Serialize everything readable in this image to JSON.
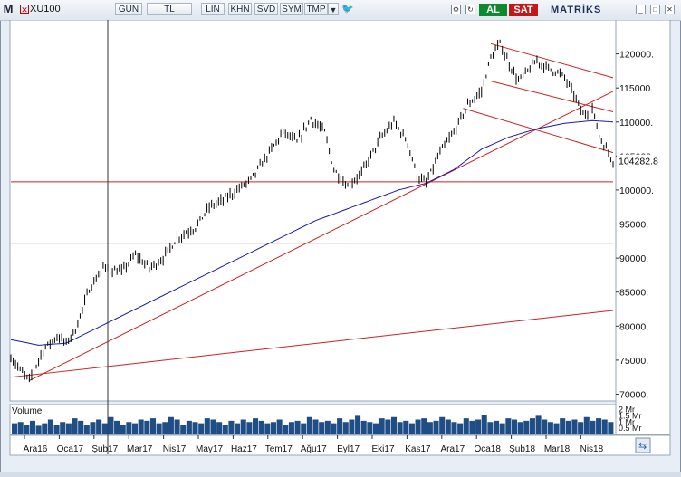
{
  "toolbar": {
    "app_icon": "M",
    "close_icon": "✕",
    "symbol": "XU100",
    "buttons": [
      "GUN",
      "TL",
      "LIN",
      "KHN",
      "SVD",
      "SYM",
      "TMP"
    ],
    "buy_label": "AL",
    "sell_label": "SAT",
    "brand": "MATRİKS"
  },
  "colors": {
    "price": "#000000",
    "moving_average": "#1a1aa8",
    "trendline": "#cc2222",
    "volume": "#1f4e86",
    "buy": "#0d8a2d",
    "sell": "#c21818"
  },
  "chart_data": {
    "type": "line",
    "instrument": "XU100",
    "last_price_label": "104282.8",
    "ylim": [
      69000,
      125000
    ],
    "y_ticks": [
      "120000.",
      "115000.",
      "110000.",
      "105000.",
      "100000.",
      "95000.",
      "90000.",
      "85000.",
      "80000.",
      "75000.",
      "70000."
    ],
    "y_tick_values": [
      120000,
      115000,
      110000,
      105000,
      100000,
      95000,
      90000,
      85000,
      80000,
      75000,
      70000
    ],
    "x_ticks": [
      "Ara16",
      "Oca17",
      "Şub17",
      "Mar17",
      "Nis17",
      "May17",
      "Haz17",
      "Tem17",
      "Ağu17",
      "Eyl17",
      "Eki17",
      "Kas17",
      "Ara17",
      "Oca18",
      "Şub18",
      "Mar18",
      "Nis18"
    ],
    "price_keypoints": [
      [
        0,
        75500
      ],
      [
        4,
        73500
      ],
      [
        8,
        72000
      ],
      [
        14,
        76500
      ],
      [
        20,
        78500
      ],
      [
        24,
        77500
      ],
      [
        28,
        79500
      ],
      [
        34,
        85500
      ],
      [
        40,
        88500
      ],
      [
        48,
        88000
      ],
      [
        54,
        90500
      ],
      [
        60,
        88500
      ],
      [
        66,
        90000
      ],
      [
        72,
        93000
      ],
      [
        80,
        94500
      ],
      [
        86,
        97500
      ],
      [
        92,
        98500
      ],
      [
        98,
        100000
      ],
      [
        104,
        101500
      ],
      [
        110,
        104500
      ],
      [
        118,
        108500
      ],
      [
        124,
        107000
      ],
      [
        130,
        110500
      ],
      [
        136,
        108500
      ],
      [
        140,
        103000
      ],
      [
        146,
        100500
      ],
      [
        152,
        102500
      ],
      [
        160,
        107500
      ],
      [
        166,
        110000
      ],
      [
        172,
        107000
      ],
      [
        176,
        102000
      ],
      [
        180,
        101000
      ],
      [
        186,
        105500
      ],
      [
        192,
        108500
      ],
      [
        198,
        112500
      ],
      [
        204,
        114500
      ],
      [
        208,
        119500
      ],
      [
        212,
        121500
      ],
      [
        216,
        118500
      ],
      [
        220,
        116000
      ],
      [
        224,
        117500
      ],
      [
        228,
        119000
      ],
      [
        232,
        118000
      ],
      [
        236,
        117500
      ],
      [
        240,
        116500
      ],
      [
        244,
        114000
      ],
      [
        248,
        111000
      ],
      [
        252,
        112000
      ],
      [
        255,
        108000
      ],
      [
        258,
        106000
      ],
      [
        261,
        104282.8
      ]
    ],
    "moving_average_keypoints": [
      [
        0,
        78000
      ],
      [
        12,
        77200
      ],
      [
        24,
        77500
      ],
      [
        36,
        79500
      ],
      [
        48,
        81500
      ],
      [
        60,
        83500
      ],
      [
        72,
        85500
      ],
      [
        84,
        87500
      ],
      [
        96,
        89500
      ],
      [
        108,
        91500
      ],
      [
        120,
        93500
      ],
      [
        132,
        95500
      ],
      [
        144,
        97000
      ],
      [
        156,
        98500
      ],
      [
        168,
        100000
      ],
      [
        180,
        101000
      ],
      [
        192,
        103000
      ],
      [
        204,
        106000
      ],
      [
        216,
        107800
      ],
      [
        228,
        109000
      ],
      [
        240,
        109800
      ],
      [
        252,
        110200
      ],
      [
        261,
        110000
      ]
    ],
    "trendlines": [
      {
        "from": [
          8,
          72000
        ],
        "to": [
          261,
          114500
        ]
      },
      {
        "from": [
          0,
          72500
        ],
        "to": [
          261,
          82300
        ]
      },
      {
        "from": [
          208,
          121500
        ],
        "to": [
          261,
          116500
        ]
      },
      {
        "from": [
          208,
          116000
        ],
        "to": [
          261,
          111500
        ]
      },
      {
        "from": [
          196,
          112000
        ],
        "to": [
          261,
          105500
        ]
      },
      {
        "from": [
          0,
          101200
        ],
        "to": [
          261,
          101200
        ]
      },
      {
        "from": [
          0,
          92200
        ],
        "to": [
          261,
          92200
        ]
      }
    ],
    "cursor_x_index": 42,
    "volume": {
      "label": "Volume",
      "y_ticks": [
        "2 Mr",
        "1.5 Mr",
        "1 Mr",
        "0.5 Mr"
      ],
      "y_tick_values": [
        2,
        1.5,
        1,
        0.5
      ],
      "ylim": [
        0,
        2.4
      ],
      "bars": [
        0.9,
        1.0,
        0.8,
        1.1,
        0.7,
        0.9,
        1.2,
        0.8,
        1.0,
        0.9,
        1.3,
        1.1,
        0.8,
        1.0,
        1.2,
        0.9,
        1.4,
        1.1,
        0.8,
        1.0,
        0.9,
        1.2,
        1.1,
        1.3,
        0.9,
        1.0,
        1.4,
        1.2,
        0.8,
        1.1,
        1.0,
        0.9,
        1.3,
        1.2,
        1.0,
        0.8,
        1.1,
        0.9,
        1.2,
        1.0,
        1.3,
        1.1,
        0.9,
        1.0,
        1.2,
        0.8,
        1.0,
        1.1,
        0.9,
        1.4,
        1.2,
        1.0,
        1.1,
        0.9,
        1.3,
        1.0,
        1.2,
        1.5,
        1.1,
        1.0,
        0.9,
        1.3,
        1.2,
        1.4,
        1.0,
        1.1,
        0.9,
        1.2,
        1.3,
        1.0,
        1.1,
        1.4,
        1.2,
        1.0,
        0.9,
        1.3,
        1.1,
        1.2,
        1.6,
        1.0,
        1.1,
        0.9,
        1.3,
        1.2,
        1.0,
        1.1,
        1.3,
        1.5,
        1.2,
        1.0,
        0.9,
        1.3,
        1.1,
        1.2,
        1.0,
        1.4,
        1.1,
        1.3,
        1.2,
        1.0
      ]
    }
  }
}
